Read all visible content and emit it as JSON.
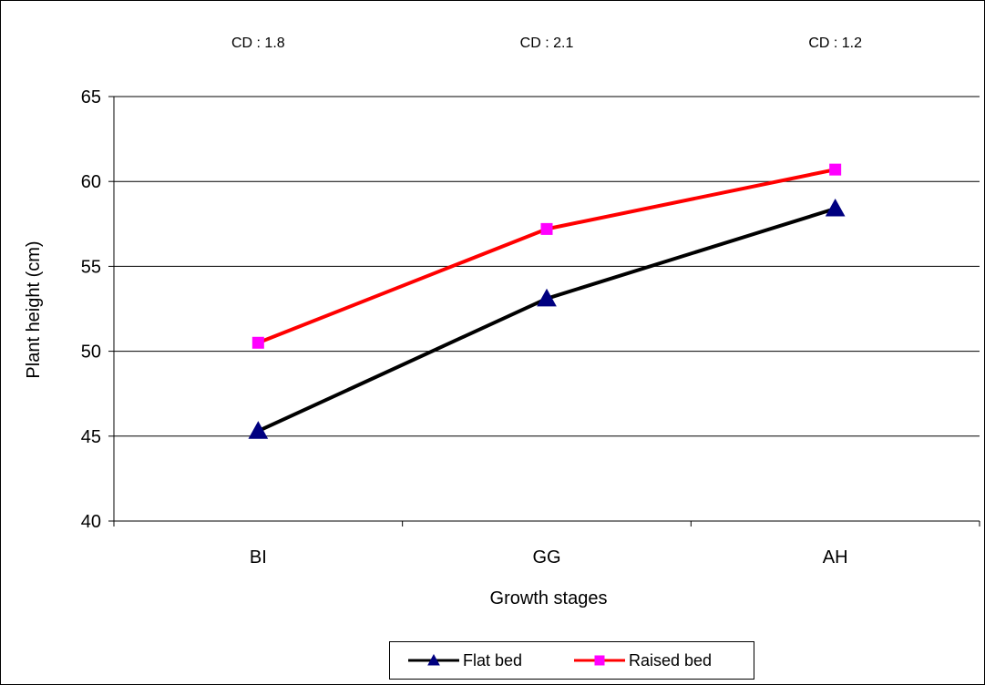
{
  "chart_data": {
    "type": "line",
    "categories": [
      "BI",
      "GG",
      "AH"
    ],
    "series": [
      {
        "name": "Flat bed",
        "values": [
          45.3,
          53.1,
          58.4
        ],
        "color": "#000000",
        "marker": "triangle",
        "marker_color": "#000080"
      },
      {
        "name": "Raised bed",
        "values": [
          50.5,
          57.2,
          60.7
        ],
        "color": "#ff0000",
        "marker": "square",
        "marker_color": "#ff00ff"
      }
    ],
    "annotations": [
      "CD : 1.8",
      "CD : 2.1",
      "CD : 1.2"
    ],
    "xlabel": "Growth stages",
    "ylabel": "Plant height (cm)",
    "ylim": [
      40,
      65
    ],
    "yticks": [
      40,
      45,
      50,
      55,
      60,
      65
    ],
    "grid": true,
    "legend_position": "bottom"
  }
}
